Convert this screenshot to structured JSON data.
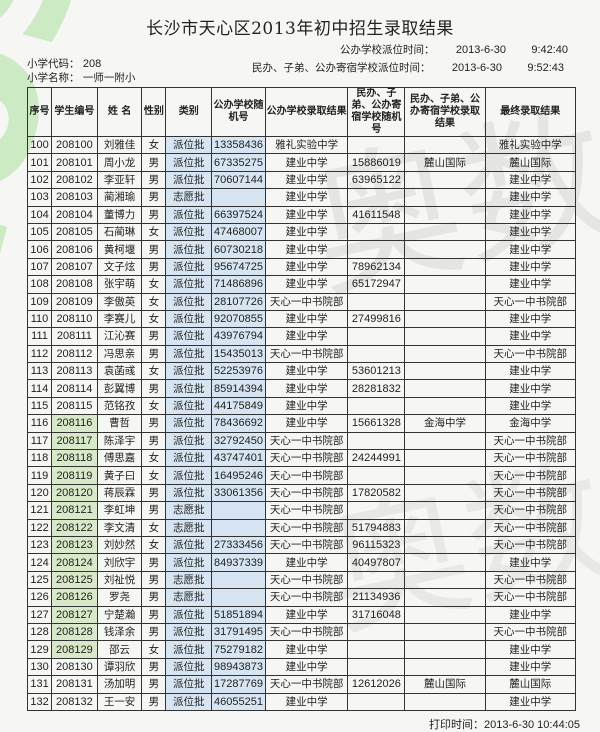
{
  "title": "长沙市天心区2013年初中招生录取结果",
  "school_code_label": "小学代码：",
  "school_code": "208",
  "school_name_label": "小学名称：",
  "school_name": "一师一附小",
  "public_time_label": "公办学校派位时间：",
  "public_time_date": "2013-6-30",
  "public_time": "9:42:40",
  "private_time_label": "民办、子弟、公办寄宿学校派位时间：",
  "private_time_date": "2013-6-30",
  "private_time": "9:52:43",
  "columns": [
    "序号",
    "学生编号",
    "姓 名",
    "性别",
    "类别",
    "公办学校随机号",
    "公办学校录取结果",
    "民办、子弟、公办寄宿学校随机号",
    "民办、子弟、公办寄宿学校录取结果",
    "最终录取结果"
  ],
  "rows": [
    [
      "100",
      "208100",
      "刘雅佳",
      "女",
      "派位批",
      "13358436",
      "雅礼实验中学",
      "",
      "",
      "雅礼实验中学"
    ],
    [
      "101",
      "208101",
      "周小龙",
      "男",
      "派位批",
      "67335275",
      "建业中学",
      "15886019",
      "麓山国际",
      "麓山国际"
    ],
    [
      "102",
      "208102",
      "李亚轩",
      "男",
      "派位批",
      "70607144",
      "建业中学",
      "63965122",
      "",
      "建业中学"
    ],
    [
      "103",
      "208103",
      "蔺湘瑜",
      "男",
      "志愿批",
      "",
      "建业中学",
      "",
      "",
      "建业中学"
    ],
    [
      "104",
      "208104",
      "董博力",
      "男",
      "派位批",
      "66397524",
      "建业中学",
      "41611548",
      "",
      "建业中学"
    ],
    [
      "105",
      "208105",
      "石蔺琳",
      "女",
      "派位批",
      "47468007",
      "建业中学",
      "",
      "",
      "建业中学"
    ],
    [
      "106",
      "208106",
      "黄柯堰",
      "男",
      "派位批",
      "60730218",
      "建业中学",
      "",
      "",
      "建业中学"
    ],
    [
      "107",
      "208107",
      "文子炫",
      "男",
      "派位批",
      "95674725",
      "建业中学",
      "78962134",
      "",
      "建业中学"
    ],
    [
      "108",
      "208108",
      "张宇萌",
      "女",
      "派位批",
      "71486896",
      "建业中学",
      "65172947",
      "",
      "建业中学"
    ],
    [
      "109",
      "208109",
      "李傲英",
      "女",
      "派位批",
      "28107726",
      "天心一中书院部",
      "",
      "",
      "天心一中书院部"
    ],
    [
      "110",
      "208110",
      "李赛儿",
      "女",
      "派位批",
      "92070855",
      "建业中学",
      "27499816",
      "",
      "建业中学"
    ],
    [
      "111",
      "208111",
      "江沁赛",
      "男",
      "派位批",
      "43976794",
      "建业中学",
      "",
      "",
      "建业中学"
    ],
    [
      "112",
      "208112",
      "冯思亲",
      "男",
      "派位批",
      "15435013",
      "天心一中书院部",
      "",
      "",
      "天心一中书院部"
    ],
    [
      "113",
      "208113",
      "袁菡彧",
      "女",
      "派位批",
      "52253976",
      "建业中学",
      "53601213",
      "",
      "建业中学"
    ],
    [
      "114",
      "208114",
      "彭翼博",
      "男",
      "派位批",
      "85914394",
      "建业中学",
      "28281832",
      "",
      "建业中学"
    ],
    [
      "115",
      "208115",
      "范铭孜",
      "女",
      "派位批",
      "44175849",
      "建业中学",
      "",
      "",
      "建业中学"
    ],
    [
      "116",
      "208116",
      "曹哲",
      "男",
      "派位批",
      "78436692",
      "建业中学",
      "15661328",
      "金海中学",
      "金海中学"
    ],
    [
      "117",
      "208117",
      "陈泽宇",
      "男",
      "派位批",
      "32792450",
      "天心一中书院部",
      "",
      "",
      "天心一中书院部"
    ],
    [
      "118",
      "208118",
      "傅思嘉",
      "女",
      "派位批",
      "43747401",
      "天心一中书院部",
      "24244991",
      "",
      "天心一中书院部"
    ],
    [
      "119",
      "208119",
      "黄子曰",
      "女",
      "派位批",
      "16495246",
      "天心一中书院部",
      "",
      "",
      "天心一中书院部"
    ],
    [
      "120",
      "208120",
      "蒋辰霖",
      "男",
      "派位批",
      "33061356",
      "天心一中书院部",
      "17820582",
      "",
      "天心一中书院部"
    ],
    [
      "121",
      "208121",
      "李虹坤",
      "男",
      "志愿批",
      "",
      "天心一中书院部",
      "",
      "",
      "天心一中书院部"
    ],
    [
      "122",
      "208122",
      "李文清",
      "女",
      "志愿批",
      "",
      "天心一中书院部",
      "51794883",
      "",
      "天心一中书院部"
    ],
    [
      "123",
      "208123",
      "刘妙然",
      "女",
      "派位批",
      "27333456",
      "天心一中书院部",
      "96115323",
      "",
      "天心一中书院部"
    ],
    [
      "124",
      "208124",
      "刘欣宇",
      "男",
      "派位批",
      "84937339",
      "建业中学",
      "40497807",
      "",
      "建业中学"
    ],
    [
      "125",
      "208125",
      "刘祉悦",
      "男",
      "志愿批",
      "",
      "天心一中书院部",
      "",
      "",
      "天心一中书院部"
    ],
    [
      "126",
      "208126",
      "罗尧",
      "男",
      "志愿批",
      "",
      "天心一中书院部",
      "21134936",
      "",
      "天心一中书院部"
    ],
    [
      "127",
      "208127",
      "宁楚瀚",
      "男",
      "派位批",
      "51851894",
      "建业中学",
      "31716048",
      "",
      "建业中学"
    ],
    [
      "128",
      "208128",
      "钱泽余",
      "男",
      "派位批",
      "31791495",
      "天心一中书院部",
      "",
      "",
      "天心一中书院部"
    ],
    [
      "129",
      "208129",
      "邵云",
      "女",
      "派位批",
      "75279182",
      "建业中学",
      "",
      "",
      "建业中学"
    ],
    [
      "130",
      "208130",
      "谭羽欣",
      "男",
      "派位批",
      "98943873",
      "建业中学",
      "",
      "",
      "建业中学"
    ],
    [
      "131",
      "208131",
      "汤加明",
      "男",
      "派位批",
      "17287769",
      "天心一中书院部",
      "12612026",
      "麓山国际",
      "麓山国际"
    ],
    [
      "132",
      "208132",
      "王一安",
      "男",
      "派位批",
      "46055251",
      "建业中学",
      "",
      "",
      "建业中学"
    ]
  ],
  "footer": "打印时间：2013-6-30 10:44:05",
  "watermark": "aoshu 奥数网"
}
